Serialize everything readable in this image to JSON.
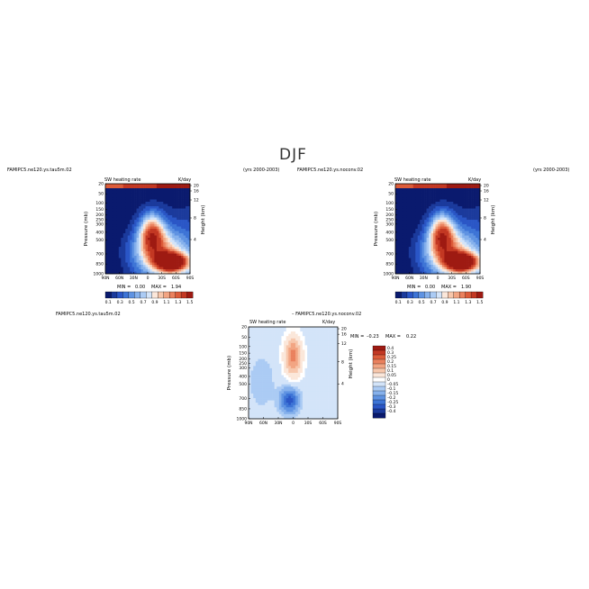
{
  "page_title": "DJF",
  "colors": {
    "scale": [
      "#0a1a6e",
      "#1b3a9c",
      "#2a56c6",
      "#3d74d6",
      "#5f93e2",
      "#86b1ec",
      "#abcbf4",
      "#d3e4f9",
      "#fbe7da",
      "#f7c7ac",
      "#f2a583",
      "#ea815e",
      "#dc5c3a",
      "#c33823",
      "#9e1a12"
    ],
    "diff_scale": [
      "#0a1a6e",
      "#1b3a9c",
      "#2a56c6",
      "#3d74d6",
      "#5f93e2",
      "#86b1ec",
      "#abcbf4",
      "#d3e4f9",
      "#ffffff",
      "#fbe7da",
      "#f7c7ac",
      "#f2a583",
      "#ea815e",
      "#dc5c3a",
      "#c33823",
      "#9e1a12"
    ]
  },
  "chart_data": [
    {
      "type": "heatmap",
      "case_label": "FAMIPC5.ne120.ys.tau5m.02",
      "years_label": "(yrs 2000-2003)",
      "plot_title": "SW heating rate",
      "units": "K/day",
      "ylabel": "Pressure (mb)",
      "ylabel_right": "Height (km)",
      "x_ticks": [
        "90N",
        "60N",
        "30N",
        "0",
        "30S",
        "60S",
        "90S"
      ],
      "y_ticks": [
        "20",
        "50",
        "100",
        "150",
        "200",
        "250",
        "300",
        "400",
        "500",
        "700",
        "850",
        "1000"
      ],
      "height_ticks": [
        "20",
        "16",
        "12",
        "8",
        "4"
      ],
      "colorbar_labels": [
        "0.1",
        "0.3",
        "0.5",
        "0.7",
        "0.9",
        "1.1",
        "1.3",
        "1.5"
      ],
      "min_label": "MIN =",
      "min_value": "0.00",
      "max_label": "MAX =",
      "max_value": "1.94"
    },
    {
      "type": "heatmap",
      "case_label": "FAMIPC5.ne120.ys.noconv.02",
      "years_label": "(yrs 2000-2003)",
      "plot_title": "SW heating rate",
      "units": "K/day",
      "ylabel": "Pressure (mb)",
      "ylabel_right": "Height (km)",
      "x_ticks": [
        "90N",
        "60N",
        "30N",
        "0",
        "30S",
        "60S",
        "90S"
      ],
      "y_ticks": [
        "20",
        "50",
        "100",
        "150",
        "200",
        "250",
        "300",
        "400",
        "500",
        "700",
        "850",
        "1000"
      ],
      "height_ticks": [
        "20",
        "16",
        "12",
        "8",
        "4"
      ],
      "colorbar_labels": [
        "0.1",
        "0.3",
        "0.5",
        "0.7",
        "0.9",
        "1.1",
        "1.3",
        "1.5"
      ],
      "min_label": "MIN =",
      "min_value": "0.00",
      "max_label": "MAX =",
      "max_value": "1.90"
    },
    {
      "type": "heatmap",
      "case_label": "FAMIPC5.ne120.ys.tau5m.02",
      "diff_label": "– FAMIPC5.ne120.ys.noconv.02",
      "plot_title": "SW heating rate",
      "units": "K/day",
      "ylabel": "Pressure (mb)",
      "ylabel_right": "Height (km)",
      "x_ticks": [
        "90N",
        "60N",
        "30N",
        "0",
        "30S",
        "60S",
        "90S"
      ],
      "y_ticks": [
        "20",
        "50",
        "100",
        "150",
        "200",
        "250",
        "300",
        "400",
        "500",
        "700",
        "850",
        "1000"
      ],
      "height_ticks": [
        "20",
        "16",
        "12",
        "8",
        "4"
      ],
      "colorbar_labels": [
        "0.4",
        "0.3",
        "0.25",
        "0.2",
        "0.15",
        "0.1",
        "0.05",
        "0",
        "–0.05",
        "–0.1",
        "–0.15",
        "–0.2",
        "–0.25",
        "–0.3",
        "–0.4"
      ],
      "min_label": "MIN =",
      "min_value": "–0.23",
      "max_label": "MAX =",
      "max_value": "0.22"
    }
  ]
}
